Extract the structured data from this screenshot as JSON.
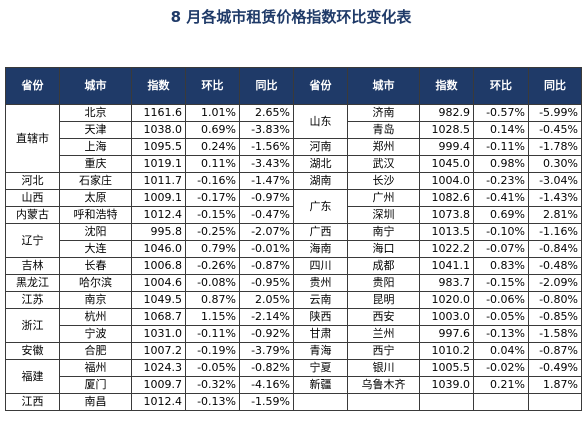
{
  "title": "8 月各城市租赁价格指数环比变化表",
  "headers": [
    "省份",
    "城市",
    "指数",
    "环比",
    "同比",
    "省份",
    "城市",
    "指数",
    "环比",
    "同比"
  ],
  "left": [
    {
      "province": "直辖市",
      "span": 4,
      "city": "北京",
      "index": "1161.6",
      "mom": "1.01%",
      "yoy": "2.65%"
    },
    {
      "province": null,
      "span": 0,
      "city": "天津",
      "index": "1038.0",
      "mom": "0.69%",
      "yoy": "-3.83%"
    },
    {
      "province": null,
      "span": 0,
      "city": "上海",
      "index": "1095.5",
      "mom": "0.24%",
      "yoy": "-1.56%"
    },
    {
      "province": null,
      "span": 0,
      "city": "重庆",
      "index": "1019.1",
      "mom": "0.11%",
      "yoy": "-3.43%"
    },
    {
      "province": "河北",
      "span": 1,
      "city": "石家庄",
      "index": "1011.7",
      "mom": "-0.16%",
      "yoy": "-1.47%"
    },
    {
      "province": "山西",
      "span": 1,
      "city": "太原",
      "index": "1009.1",
      "mom": "-0.17%",
      "yoy": "-0.97%"
    },
    {
      "province": "内蒙古",
      "span": 1,
      "city": "呼和浩特",
      "index": "1012.4",
      "mom": "-0.15%",
      "yoy": "-0.47%"
    },
    {
      "province": "辽宁",
      "span": 2,
      "city": "沈阳",
      "index": "995.8",
      "mom": "-0.25%",
      "yoy": "-2.07%"
    },
    {
      "province": null,
      "span": 0,
      "city": "大连",
      "index": "1046.0",
      "mom": "0.79%",
      "yoy": "-0.01%"
    },
    {
      "province": "吉林",
      "span": 1,
      "city": "长春",
      "index": "1006.8",
      "mom": "-0.26%",
      "yoy": "-0.87%"
    },
    {
      "province": "黑龙江",
      "span": 1,
      "city": "哈尔滨",
      "index": "1004.6",
      "mom": "-0.08%",
      "yoy": "-0.95%"
    },
    {
      "province": "江苏",
      "span": 1,
      "city": "南京",
      "index": "1049.5",
      "mom": "0.87%",
      "yoy": "2.05%"
    },
    {
      "province": "浙江",
      "span": 2,
      "city": "杭州",
      "index": "1068.7",
      "mom": "1.15%",
      "yoy": "-2.14%"
    },
    {
      "province": null,
      "span": 0,
      "city": "宁波",
      "index": "1031.0",
      "mom": "-0.11%",
      "yoy": "-0.92%"
    },
    {
      "province": "安徽",
      "span": 1,
      "city": "合肥",
      "index": "1007.2",
      "mom": "-0.19%",
      "yoy": "-3.79%"
    },
    {
      "province": "福建",
      "span": 2,
      "city": "福州",
      "index": "1024.3",
      "mom": "-0.05%",
      "yoy": "-0.82%"
    },
    {
      "province": null,
      "span": 0,
      "city": "厦门",
      "index": "1009.7",
      "mom": "-0.32%",
      "yoy": "-4.16%"
    },
    {
      "province": "江西",
      "span": 1,
      "city": "南昌",
      "index": "1012.4",
      "mom": "-0.13%",
      "yoy": "-1.59%"
    }
  ],
  "right": [
    {
      "province": "山东",
      "span": 2,
      "city": "济南",
      "index": "982.9",
      "mom": "-0.57%",
      "yoy": "-5.99%"
    },
    {
      "province": null,
      "span": 0,
      "city": "青岛",
      "index": "1028.5",
      "mom": "0.14%",
      "yoy": "-0.45%"
    },
    {
      "province": "河南",
      "span": 1,
      "city": "郑州",
      "index": "999.4",
      "mom": "-0.11%",
      "yoy": "-1.78%"
    },
    {
      "province": "湖北",
      "span": 1,
      "city": "武汉",
      "index": "1045.0",
      "mom": "0.98%",
      "yoy": "0.30%"
    },
    {
      "province": "湖南",
      "span": 1,
      "city": "长沙",
      "index": "1004.0",
      "mom": "-0.23%",
      "yoy": "-3.04%"
    },
    {
      "province": "广东",
      "span": 2,
      "city": "广州",
      "index": "1082.6",
      "mom": "-0.41%",
      "yoy": "-1.43%"
    },
    {
      "province": null,
      "span": 0,
      "city": "深圳",
      "index": "1073.8",
      "mom": "0.69%",
      "yoy": "2.81%"
    },
    {
      "province": "广西",
      "span": 1,
      "city": "南宁",
      "index": "1013.5",
      "mom": "-0.10%",
      "yoy": "-1.16%"
    },
    {
      "province": "海南",
      "span": 1,
      "city": "海口",
      "index": "1022.2",
      "mom": "-0.07%",
      "yoy": "-0.84%"
    },
    {
      "province": "四川",
      "span": 1,
      "city": "成都",
      "index": "1041.1",
      "mom": "0.83%",
      "yoy": "-0.48%"
    },
    {
      "province": "贵州",
      "span": 1,
      "city": "贵阳",
      "index": "983.7",
      "mom": "-0.15%",
      "yoy": "-2.09%"
    },
    {
      "province": "云南",
      "span": 1,
      "city": "昆明",
      "index": "1020.0",
      "mom": "-0.06%",
      "yoy": "-0.80%"
    },
    {
      "province": "陕西",
      "span": 1,
      "city": "西安",
      "index": "1003.0",
      "mom": "-0.05%",
      "yoy": "-0.85%"
    },
    {
      "province": "甘肃",
      "span": 1,
      "city": "兰州",
      "index": "997.6",
      "mom": "-0.13%",
      "yoy": "-1.58%"
    },
    {
      "province": "青海",
      "span": 1,
      "city": "西宁",
      "index": "1010.2",
      "mom": "0.04%",
      "yoy": "-0.87%"
    },
    {
      "province": "宁夏",
      "span": 1,
      "city": "银川",
      "index": "1005.5",
      "mom": "-0.02%",
      "yoy": "-0.49%"
    },
    {
      "province": "新疆",
      "span": 1,
      "city": "乌鲁木齐",
      "index": "1039.0",
      "mom": "0.21%",
      "yoy": "1.87%"
    },
    {
      "province": "",
      "span": 1,
      "city": "",
      "index": "",
      "mom": "",
      "yoy": ""
    }
  ]
}
